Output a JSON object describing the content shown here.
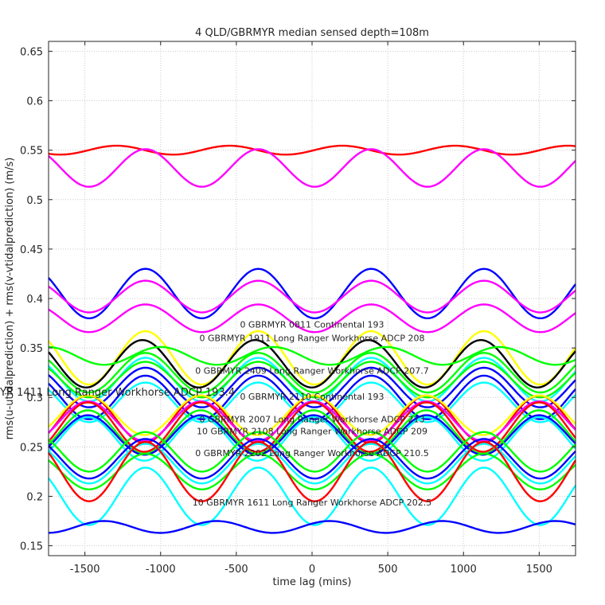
{
  "chart_data": {
    "type": "line",
    "title": "4 QLD/GBRMYR median sensed depth=108m",
    "xlabel": "time lag (mins)",
    "ylabel": "rms(u-utidalprediction) + rms(v-vtidalprediction) (m/s)",
    "xlim": [
      -1740,
      1740
    ],
    "ylim": [
      0.14,
      0.66
    ],
    "x_ticks": [
      -1500,
      -1000,
      -500,
      0,
      500,
      1000,
      1500
    ],
    "y_ticks": [
      0.15,
      0.2,
      0.25,
      0.3,
      0.35,
      0.4,
      0.45,
      0.5,
      0.55,
      0.6,
      0.65
    ],
    "grid": true,
    "series_note": "oscillating series approximated as mean + amp*cos(2*pi*(x - phase)/period)",
    "series": [
      {
        "name": "red top",
        "color": "#ff0000",
        "mean": 0.55,
        "amp": 0.0045,
        "period": 745,
        "phase": -1290
      },
      {
        "name": "magenta top",
        "color": "#ff00ff",
        "mean": 0.532,
        "amp": 0.019,
        "period": 745,
        "phase": -1100
      },
      {
        "name": "blue upper",
        "color": "#0000ff",
        "mean": 0.405,
        "amp": 0.025,
        "period": 745,
        "phase": -1100
      },
      {
        "name": "magenta upper",
        "color": "#ff00ff",
        "mean": 0.402,
        "amp": 0.016,
        "period": 745,
        "phase": -1100
      },
      {
        "name": "magenta lower",
        "color": "#ff00ff",
        "mean": 0.38,
        "amp": 0.014,
        "period": 745,
        "phase": -1100
      },
      {
        "name": "yellow",
        "color": "#ffff00",
        "mean": 0.34,
        "amp": 0.027,
        "period": 745,
        "phase": -1100
      },
      {
        "name": "black",
        "color": "#000000",
        "mean": 0.334,
        "amp": 0.024,
        "period": 745,
        "phase": -1120
      },
      {
        "name": "green flat",
        "color": "#00ff00",
        "mean": 0.342,
        "amp": 0.009,
        "period": 745,
        "phase": -1000
      },
      {
        "name": "green 2",
        "color": "#00ff00",
        "mean": 0.325,
        "amp": 0.02,
        "period": 745,
        "phase": -1100
      },
      {
        "name": "cyan 1",
        "color": "#00ffff",
        "mean": 0.318,
        "amp": 0.022,
        "period": 745,
        "phase": -1100
      },
      {
        "name": "green 3",
        "color": "#00ff00",
        "mean": 0.318,
        "amp": 0.018,
        "period": 745,
        "phase": -1100
      },
      {
        "name": "blue 2",
        "color": "#0000ff",
        "mean": 0.31,
        "amp": 0.02,
        "period": 745,
        "phase": -1100
      },
      {
        "name": "blue 3",
        "color": "#0000ff",
        "mean": 0.3,
        "amp": 0.022,
        "period": 745,
        "phase": -1100
      },
      {
        "name": "cyan 2",
        "color": "#00ffff",
        "mean": 0.295,
        "amp": 0.02,
        "period": 745,
        "phase": -1100
      },
      {
        "name": "red mid 1",
        "color": "#ff0000",
        "mean": 0.278,
        "amp": 0.024,
        "period": 745,
        "phase": -1480
      },
      {
        "name": "yellow 2",
        "color": "#ffff00",
        "mean": 0.282,
        "amp": 0.02,
        "period": 745,
        "phase": -1480
      },
      {
        "name": "magenta mid",
        "color": "#ff00ff",
        "mean": 0.276,
        "amp": 0.02,
        "period": 745,
        "phase": -1480
      },
      {
        "name": "red mid 2",
        "color": "#ff0000",
        "mean": 0.27,
        "amp": 0.025,
        "period": 745,
        "phase": -1480
      },
      {
        "name": "green mid",
        "color": "#00ff00",
        "mean": 0.265,
        "amp": 0.022,
        "period": 745,
        "phase": -1480
      },
      {
        "name": "blue mid",
        "color": "#0000ff",
        "mean": 0.262,
        "amp": 0.02,
        "period": 745,
        "phase": -1480
      },
      {
        "name": "cyan mid",
        "color": "#00ffff",
        "mean": 0.258,
        "amp": 0.022,
        "period": 745,
        "phase": -1480
      },
      {
        "name": "green low 1",
        "color": "#00ff00",
        "mean": 0.245,
        "amp": 0.02,
        "period": 745,
        "phase": -1100
      },
      {
        "name": "blue low",
        "color": "#0000ff",
        "mean": 0.238,
        "amp": 0.02,
        "period": 745,
        "phase": -1100
      },
      {
        "name": "cyan low",
        "color": "#00ffff",
        "mean": 0.233,
        "amp": 0.02,
        "period": 745,
        "phase": -1100
      },
      {
        "name": "green low 2",
        "color": "#00ff00",
        "mean": 0.225,
        "amp": 0.018,
        "period": 745,
        "phase": -1100
      },
      {
        "name": "red low",
        "color": "#ff0000",
        "mean": 0.225,
        "amp": 0.03,
        "period": 745,
        "phase": -1100
      },
      {
        "name": "cyan bottom",
        "color": "#00ffff",
        "mean": 0.2,
        "amp": 0.029,
        "period": 745,
        "phase": -1100
      },
      {
        "name": "blue bottom",
        "color": "#0000ff",
        "mean": 0.169,
        "amp": 0.006,
        "period": 745,
        "phase": -630
      }
    ],
    "annotations": [
      {
        "text": "0 GBRMYR 0811 Continental 193",
        "x": 0,
        "y": 0.374,
        "size": "small"
      },
      {
        "text": "0 GBRMYR 1911 Long Ranger Workhorse ADCP 208",
        "x": 0,
        "y": 0.36,
        "size": "small"
      },
      {
        "text": "0 GBRMYR 2409 Long Ranger Workhorse ADCP 207.7",
        "x": 0,
        "y": 0.327,
        "size": "small"
      },
      {
        "text": "YR 1411 Long Ranger Workhorse ADCP 193.4",
        "x": -1620,
        "y": 0.305,
        "size": "large"
      },
      {
        "text": "0 GBRMYR 2110 Continental 193",
        "x": 0,
        "y": 0.301,
        "size": "small"
      },
      {
        "text": "0 GBRMYR 2007 Long Ranger Workhorse ADCP 213",
        "x": 0,
        "y": 0.278,
        "size": "small"
      },
      {
        "text": "10 GBRMYR 2108 Long Ranger Workhorse ADCP 209",
        "x": 0,
        "y": 0.266,
        "size": "small"
      },
      {
        "text": "0 GBRMYR 2202 Long Ranger Workhorse ADCP 210.5",
        "x": 0,
        "y": 0.244,
        "size": "small"
      },
      {
        "text": "10 GBRMYR 1611 Long Ranger Workhorse ADCP 202.5",
        "x": 0,
        "y": 0.194,
        "size": "small"
      }
    ]
  }
}
